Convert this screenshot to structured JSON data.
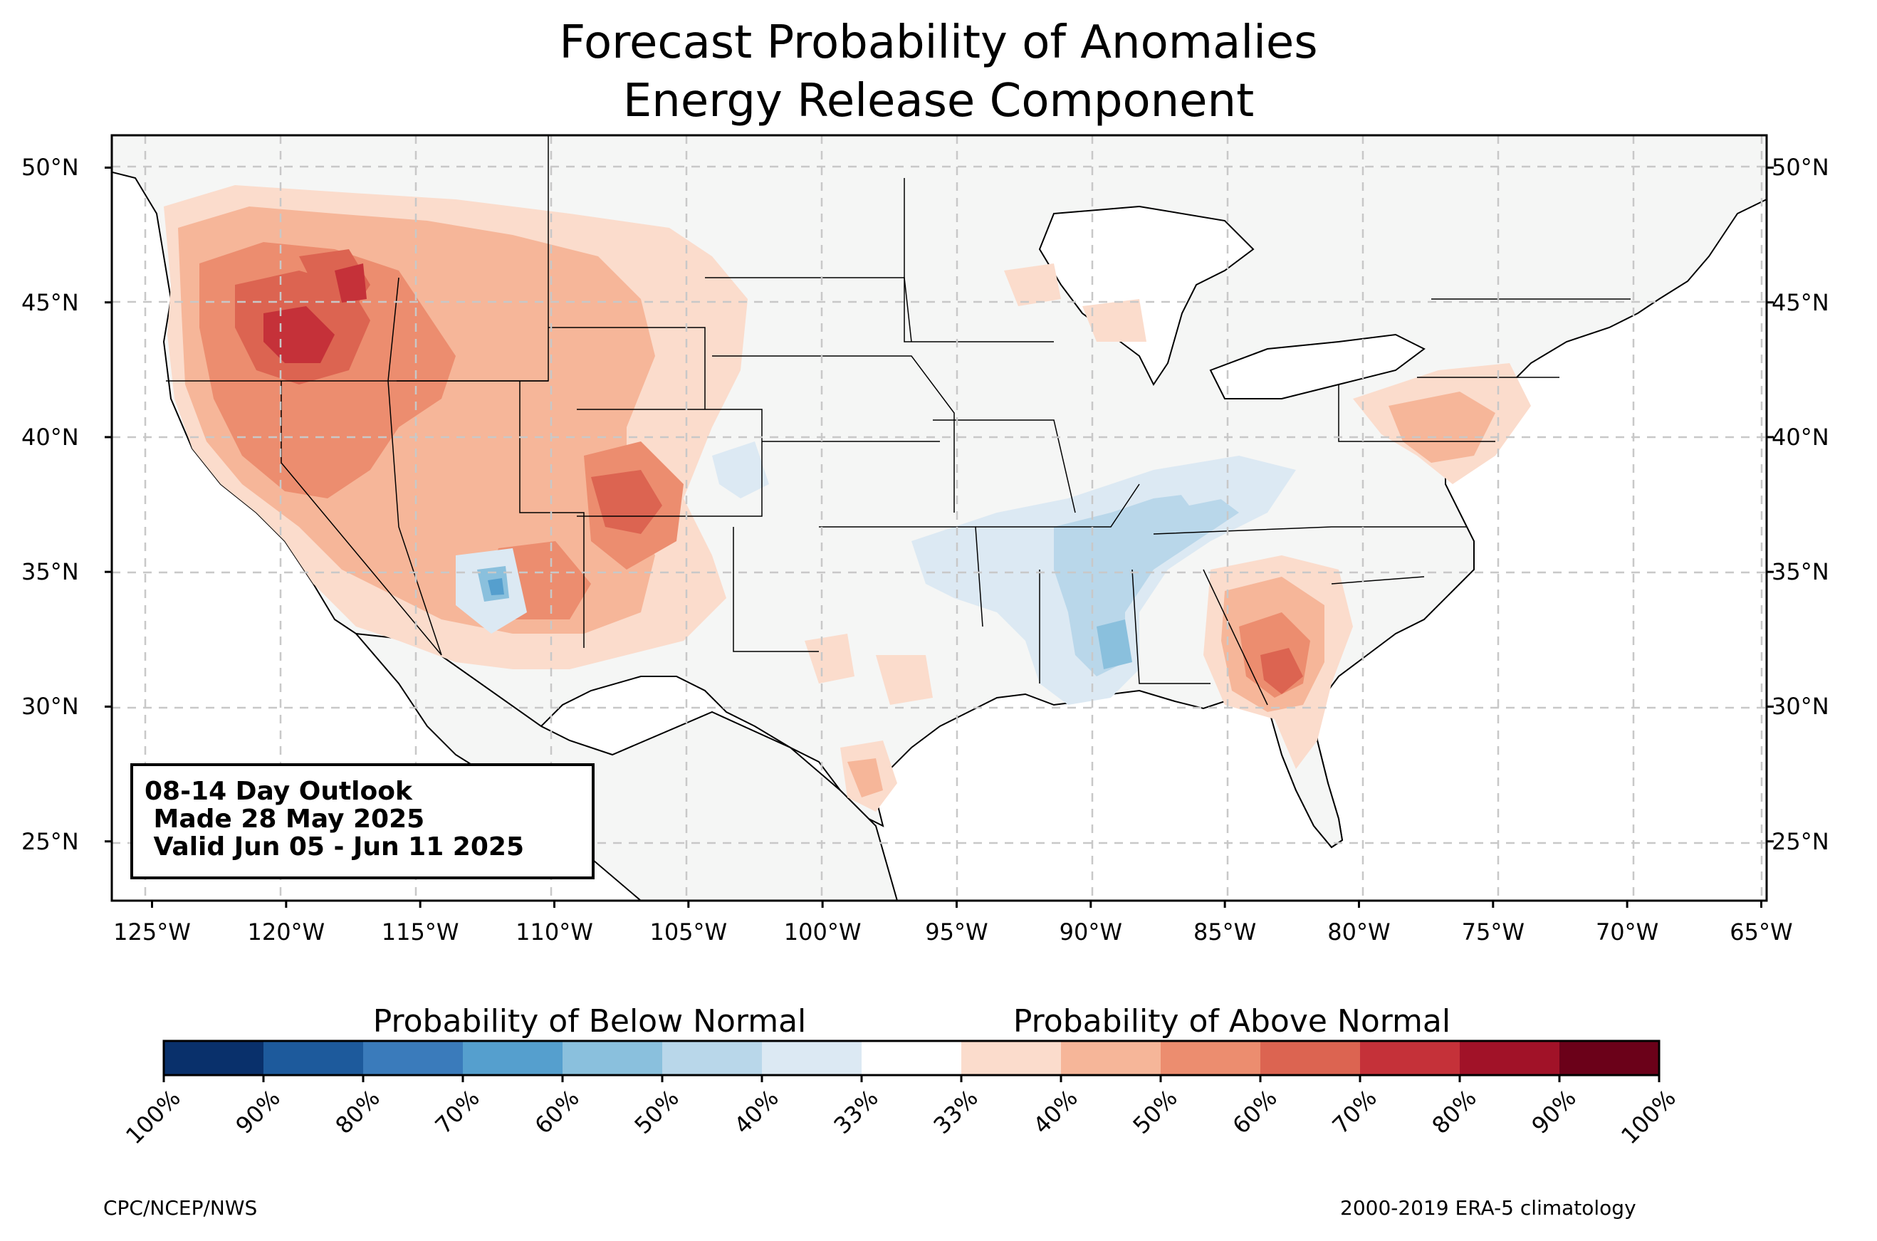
{
  "title": {
    "line1": "Forecast Probability of Anomalies",
    "line2": "Energy Release Component"
  },
  "map": {
    "lon_range": [
      -126.5,
      -64.8
    ],
    "lat_range": [
      22.8,
      51.2
    ],
    "lon_ticks": [
      {
        "value": -125,
        "label": "125°W"
      },
      {
        "value": -120,
        "label": "120°W"
      },
      {
        "value": -115,
        "label": "115°W"
      },
      {
        "value": -110,
        "label": "110°W"
      },
      {
        "value": -105,
        "label": "105°W"
      },
      {
        "value": -100,
        "label": "100°W"
      },
      {
        "value": -95,
        "label": "95°W"
      },
      {
        "value": -90,
        "label": "90°W"
      },
      {
        "value": -85,
        "label": "85°W"
      },
      {
        "value": -80,
        "label": "80°W"
      },
      {
        "value": -75,
        "label": "75°W"
      },
      {
        "value": -70,
        "label": "70°W"
      },
      {
        "value": -65,
        "label": "65°W"
      }
    ],
    "lat_ticks": [
      {
        "value": 50,
        "label": "50°N"
      },
      {
        "value": 45,
        "label": "45°N"
      },
      {
        "value": 40,
        "label": "40°N"
      },
      {
        "value": 35,
        "label": "35°N"
      },
      {
        "value": 30,
        "label": "30°N"
      },
      {
        "value": 25,
        "label": "25°N"
      }
    ],
    "grid": true,
    "land_color": "#f5f6f5",
    "water_color": "#ffffff"
  },
  "outlook": {
    "line1": "08-14 Day Outlook",
    "line2": " Made 28 May 2025",
    "line3": " Valid Jun 05 - Jun 11 2025"
  },
  "colorbar": {
    "below_label": "Probability of Below Normal",
    "above_label": "Probability of Above Normal",
    "ticks": [
      "100%",
      "90%",
      "80%",
      "70%",
      "60%",
      "50%",
      "40%",
      "33%",
      "33%",
      "40%",
      "50%",
      "60%",
      "70%",
      "80%",
      "90%",
      "100%"
    ],
    "colors": [
      "#09306b",
      "#1d5a9c",
      "#3a7bbb",
      "#559fce",
      "#8ac0dd",
      "#b9d7ea",
      "#dce9f3",
      "#ffffff",
      "#fbdccc",
      "#f6b699",
      "#ec8d6f",
      "#dc6451",
      "#c53139",
      "#a11228",
      "#6b0119"
    ]
  },
  "footer": {
    "left": "CPC/NCEP/NWS",
    "right": "2000-2019 ERA-5 climatology"
  }
}
